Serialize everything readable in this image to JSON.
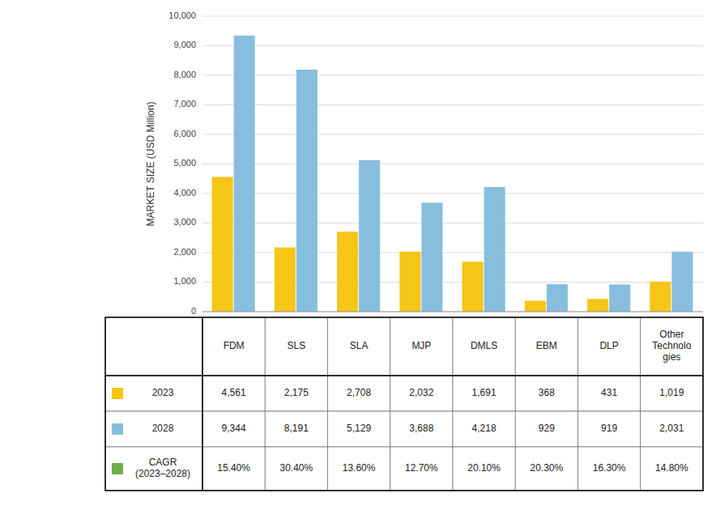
{
  "chart_data": {
    "type": "bar",
    "ylabel": "MARKET SIZE (USD Million)",
    "categories": [
      "FDM",
      "SLS",
      "SLA",
      "MJP",
      "DMLS",
      "EBM",
      "DLP",
      "Other\nTechnolo\ngies"
    ],
    "series": [
      {
        "name": "2023",
        "color": "#F5C518",
        "values": [
          4561,
          2175,
          2708,
          2032,
          1691,
          368,
          431,
          1019
        ],
        "value_labels": [
          "4,561",
          "2,175",
          "2,708",
          "2,032",
          "1,691",
          "368",
          "431",
          "1,019"
        ]
      },
      {
        "name": "2028",
        "color": "#87BEDD",
        "values": [
          9344,
          8191,
          5129,
          3688,
          4218,
          929,
          919,
          2031
        ],
        "value_labels": [
          "9,344",
          "8,191",
          "5,129",
          "3,688",
          "4,218",
          "929",
          "919",
          "2,031"
        ]
      },
      {
        "name": "CAGR\n(2023–2028)",
        "color": "#70AD47",
        "type": "table",
        "values": [
          15.4,
          30.4,
          13.6,
          12.7,
          20.1,
          20.3,
          16.3,
          14.8
        ],
        "value_labels": [
          "15.40%",
          "30.40%",
          "13.60%",
          "12.70%",
          "20.10%",
          "20.30%",
          "16.30%",
          "14.80%"
        ]
      }
    ],
    "ylim": [
      0,
      10000
    ],
    "yticks": [
      0,
      {
        "value": 1000,
        "label": "1,000"
      },
      {
        "value": 2000,
        "label": "2,000"
      },
      {
        "value": 3000,
        "label": "3,000"
      },
      {
        "value": 4000,
        "label": "4,000"
      },
      {
        "value": 5000,
        "label": "5,000"
      },
      {
        "value": 6000,
        "label": "6,000"
      },
      {
        "value": 7000,
        "label": "7,000"
      },
      {
        "value": 8000,
        "label": "8,000"
      },
      {
        "value": 9000,
        "label": "9,000"
      },
      {
        "value": 10000,
        "label": "10,000"
      }
    ],
    "grid": true
  }
}
